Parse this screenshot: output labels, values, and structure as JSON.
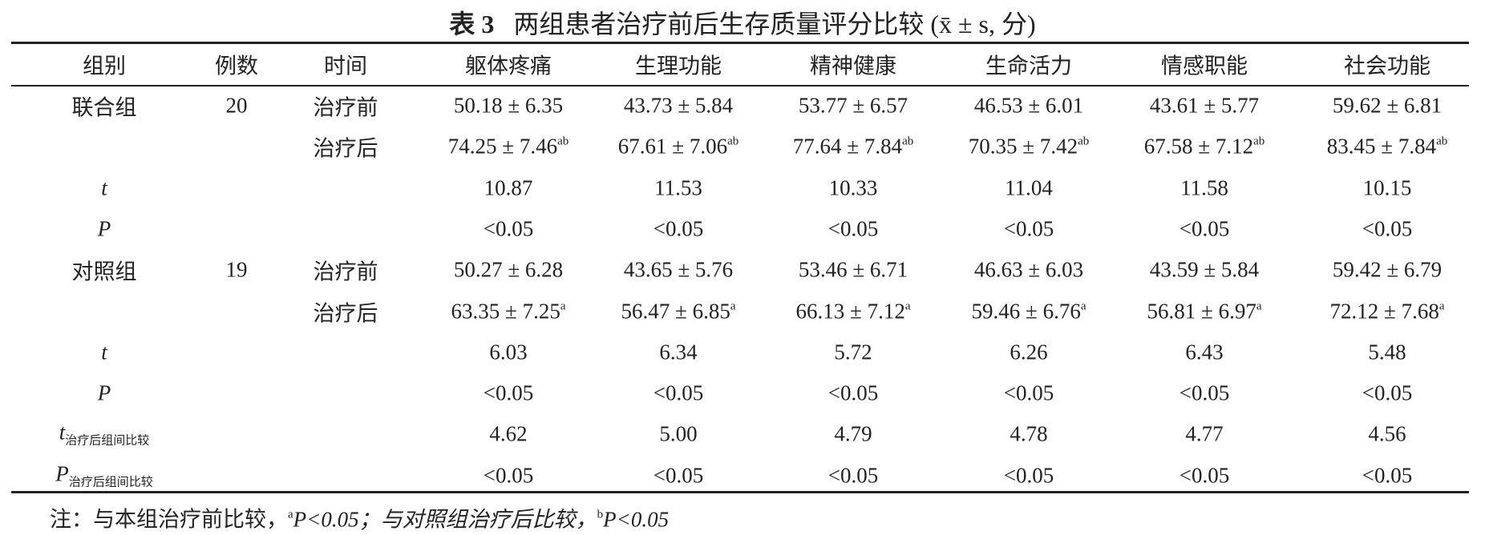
{
  "title": {
    "label": "表 3",
    "text": "两组患者治疗前后生存质量评分比较 (x̄ ± s, 分)"
  },
  "table": {
    "headers": [
      "组别",
      "例数",
      "时间",
      "躯体疼痛",
      "生理功能",
      "精神健康",
      "生命活力",
      "情感职能",
      "社会功能"
    ],
    "rows": [
      {
        "group": "联合组",
        "n": "20",
        "time": "治疗前",
        "values": [
          "50.18 ± 6.35",
          "43.73 ± 5.84",
          "53.77 ± 6.57",
          "46.53 ± 6.01",
          "43.61 ± 5.77",
          "59.62 ± 6.81"
        ]
      },
      {
        "time": "治疗后",
        "values": [
          {
            "text": "74.25 ± 7.46",
            "sup": "ab"
          },
          {
            "text": "67.61 ± 7.06",
            "sup": "ab"
          },
          {
            "text": "77.64 ± 7.84",
            "sup": "ab"
          },
          {
            "text": "70.35 ± 7.42",
            "sup": "ab"
          },
          {
            "text": "67.58 ± 7.12",
            "sup": "ab"
          },
          {
            "text": "83.45 ± 7.84",
            "sup": "ab"
          }
        ]
      },
      {
        "stat": "t",
        "values": [
          "10.87",
          "11.53",
          "10.33",
          "11.04",
          "11.58",
          "10.15"
        ]
      },
      {
        "stat": "P",
        "values": [
          "<0.05",
          "<0.05",
          "<0.05",
          "<0.05",
          "<0.05",
          "<0.05"
        ]
      },
      {
        "group": "对照组",
        "n": "19",
        "time": "治疗前",
        "values": [
          "50.27 ± 6.28",
          "43.65 ± 5.76",
          "53.46 ± 6.71",
          "46.63 ± 6.03",
          "43.59 ± 5.84",
          "59.42 ± 6.79"
        ]
      },
      {
        "time": "治疗后",
        "values": [
          {
            "text": "63.35 ± 7.25",
            "sup": "a"
          },
          {
            "text": "56.47 ± 6.85",
            "sup": "a"
          },
          {
            "text": "66.13 ± 7.12",
            "sup": "a"
          },
          {
            "text": "59.46 ± 6.76",
            "sup": "a"
          },
          {
            "text": "56.81 ± 6.97",
            "sup": "a"
          },
          {
            "text": "72.12 ± 7.68",
            "sup": "a"
          }
        ]
      },
      {
        "stat": "t",
        "values": [
          "6.03",
          "6.34",
          "5.72",
          "6.26",
          "6.43",
          "5.48"
        ]
      },
      {
        "stat": "P",
        "values": [
          "<0.05",
          "<0.05",
          "<0.05",
          "<0.05",
          "<0.05",
          "<0.05"
        ]
      },
      {
        "stat": "t",
        "stat_sub": "治疗后组间比较",
        "values": [
          "4.62",
          "5.00",
          "4.79",
          "4.78",
          "4.77",
          "4.56"
        ]
      },
      {
        "stat": "P",
        "stat_sub": "治疗后组间比较",
        "values": [
          "<0.05",
          "<0.05",
          "<0.05",
          "<0.05",
          "<0.05",
          "<0.05"
        ]
      }
    ]
  },
  "note": {
    "prefix": "注：与本组治疗前比较，",
    "sup1": "a",
    "text1": "P<0.05；与对照组治疗后比较，",
    "sup2": "b",
    "text2": "P<0.05"
  }
}
